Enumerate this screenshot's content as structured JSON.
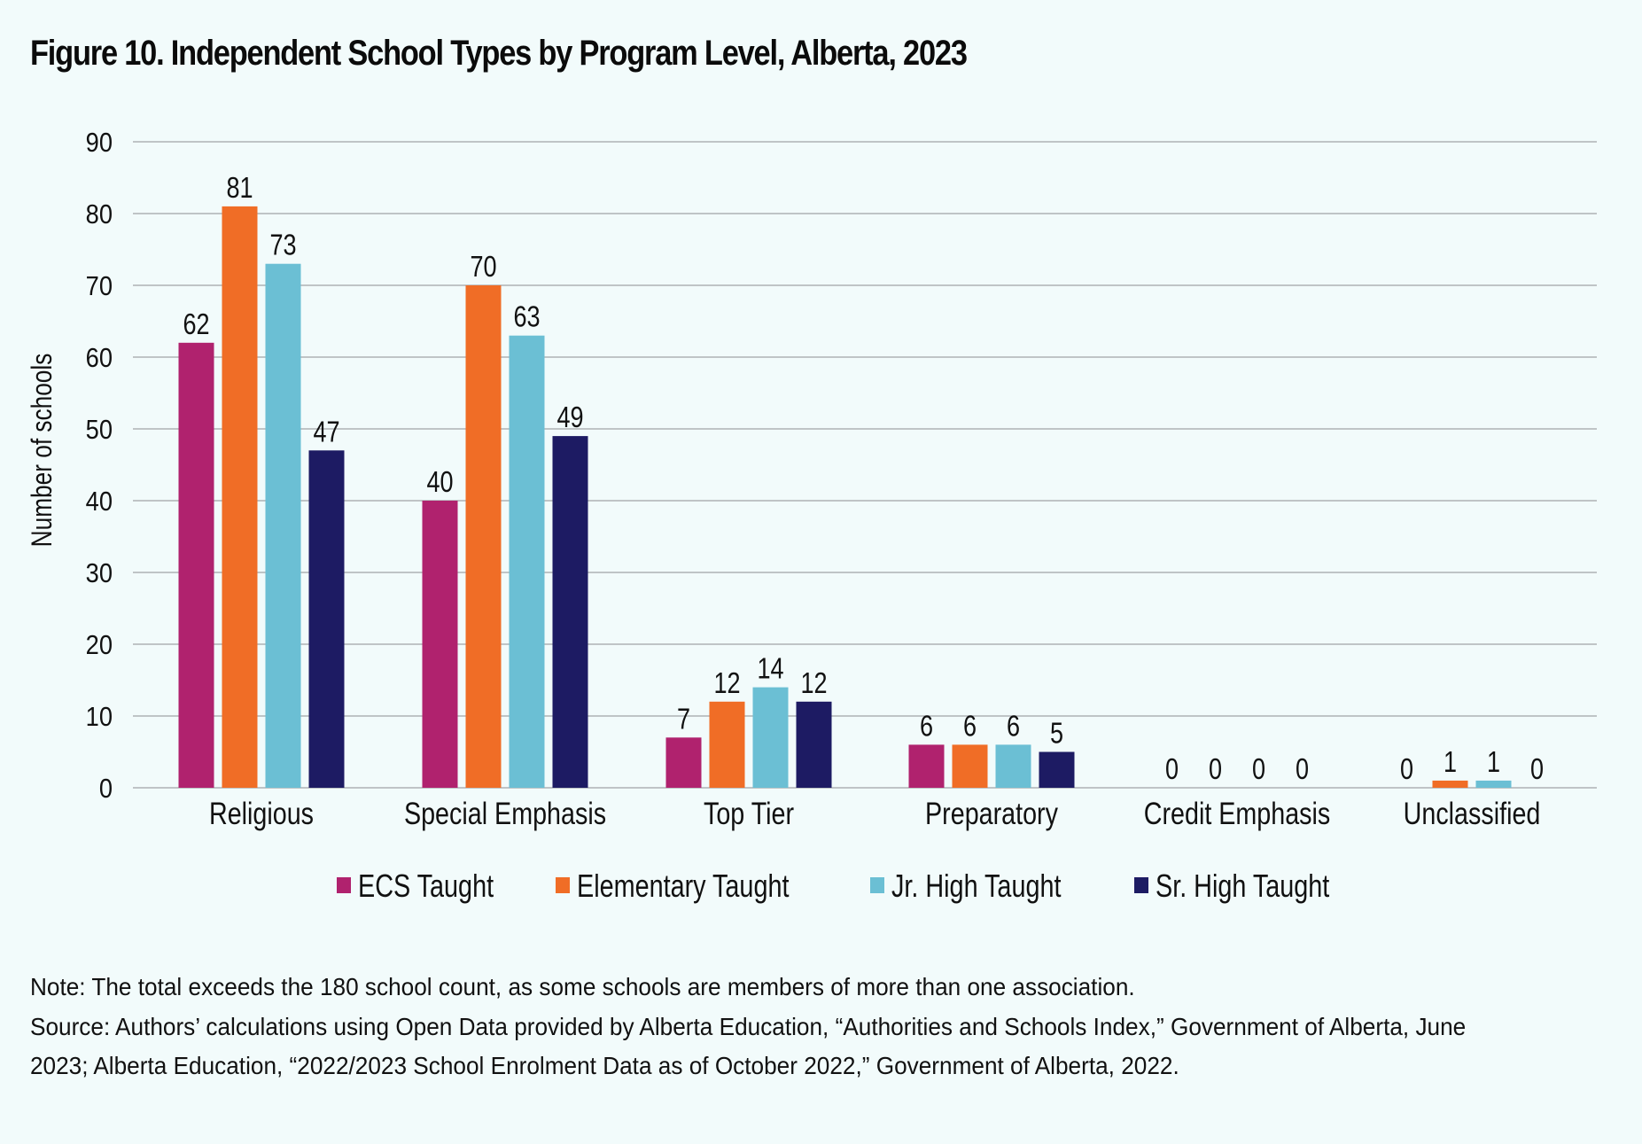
{
  "title": "Figure 10. Independent School Types by Program Level, Alberta, 2023",
  "colors": {
    "background": "#f2fbfb",
    "grid": "#bfc4c6",
    "ECS Taught": "#b0226e",
    "Elementary Taught": "#f06d26",
    "Jr. High Taught": "#6bbfd4",
    "Sr. High Taught": "#1d1b63"
  },
  "chart_data": {
    "type": "bar",
    "title": "Figure 10. Independent School Types by Program Level, Alberta, 2023",
    "xlabel": "",
    "ylabel": "Number of schools",
    "ylim": [
      0,
      90
    ],
    "yticks": [
      0,
      10,
      20,
      30,
      40,
      50,
      60,
      70,
      80,
      90
    ],
    "grid": true,
    "legend_position": "bottom",
    "data_labels": true,
    "categories": [
      "Religious",
      "Special Emphasis",
      "Top Tier",
      "Preparatory",
      "Credit Emphasis",
      "Unclassified"
    ],
    "series": [
      {
        "name": "ECS Taught",
        "values": [
          62,
          40,
          7,
          6,
          0,
          0
        ]
      },
      {
        "name": "Elementary Taught",
        "values": [
          81,
          70,
          12,
          6,
          0,
          1
        ]
      },
      {
        "name": "Jr. High Taught",
        "values": [
          73,
          63,
          14,
          6,
          0,
          1
        ]
      },
      {
        "name": "Sr. High Taught",
        "values": [
          47,
          49,
          12,
          5,
          0,
          0
        ]
      }
    ]
  },
  "notes": {
    "note": "Note: The total exceeds the 180 school count, as some schools are members of more than one association.",
    "source": "Source: Authors’ calculations using Open Data provided by Alberta Education, “Authorities and Schools Index,” Government of Alberta, June 2023; Alberta Education, “2022/2023 School Enrolment Data as of October 2022,” Government of Alberta, 2022."
  }
}
